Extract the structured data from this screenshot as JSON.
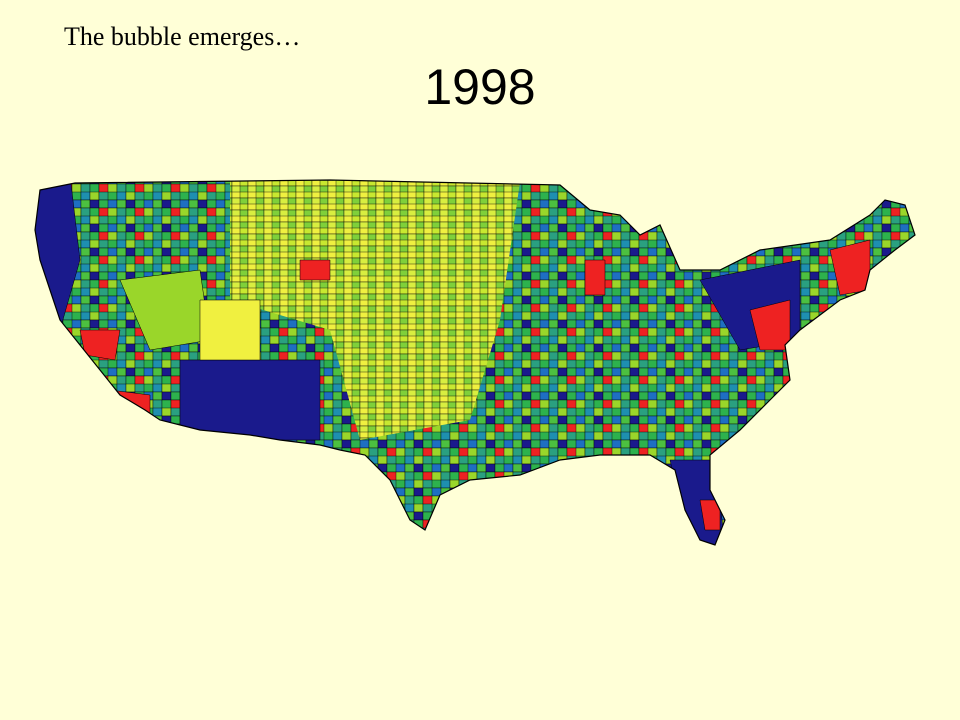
{
  "subtitle": "The bubble emerges…",
  "title": "1998"
}
